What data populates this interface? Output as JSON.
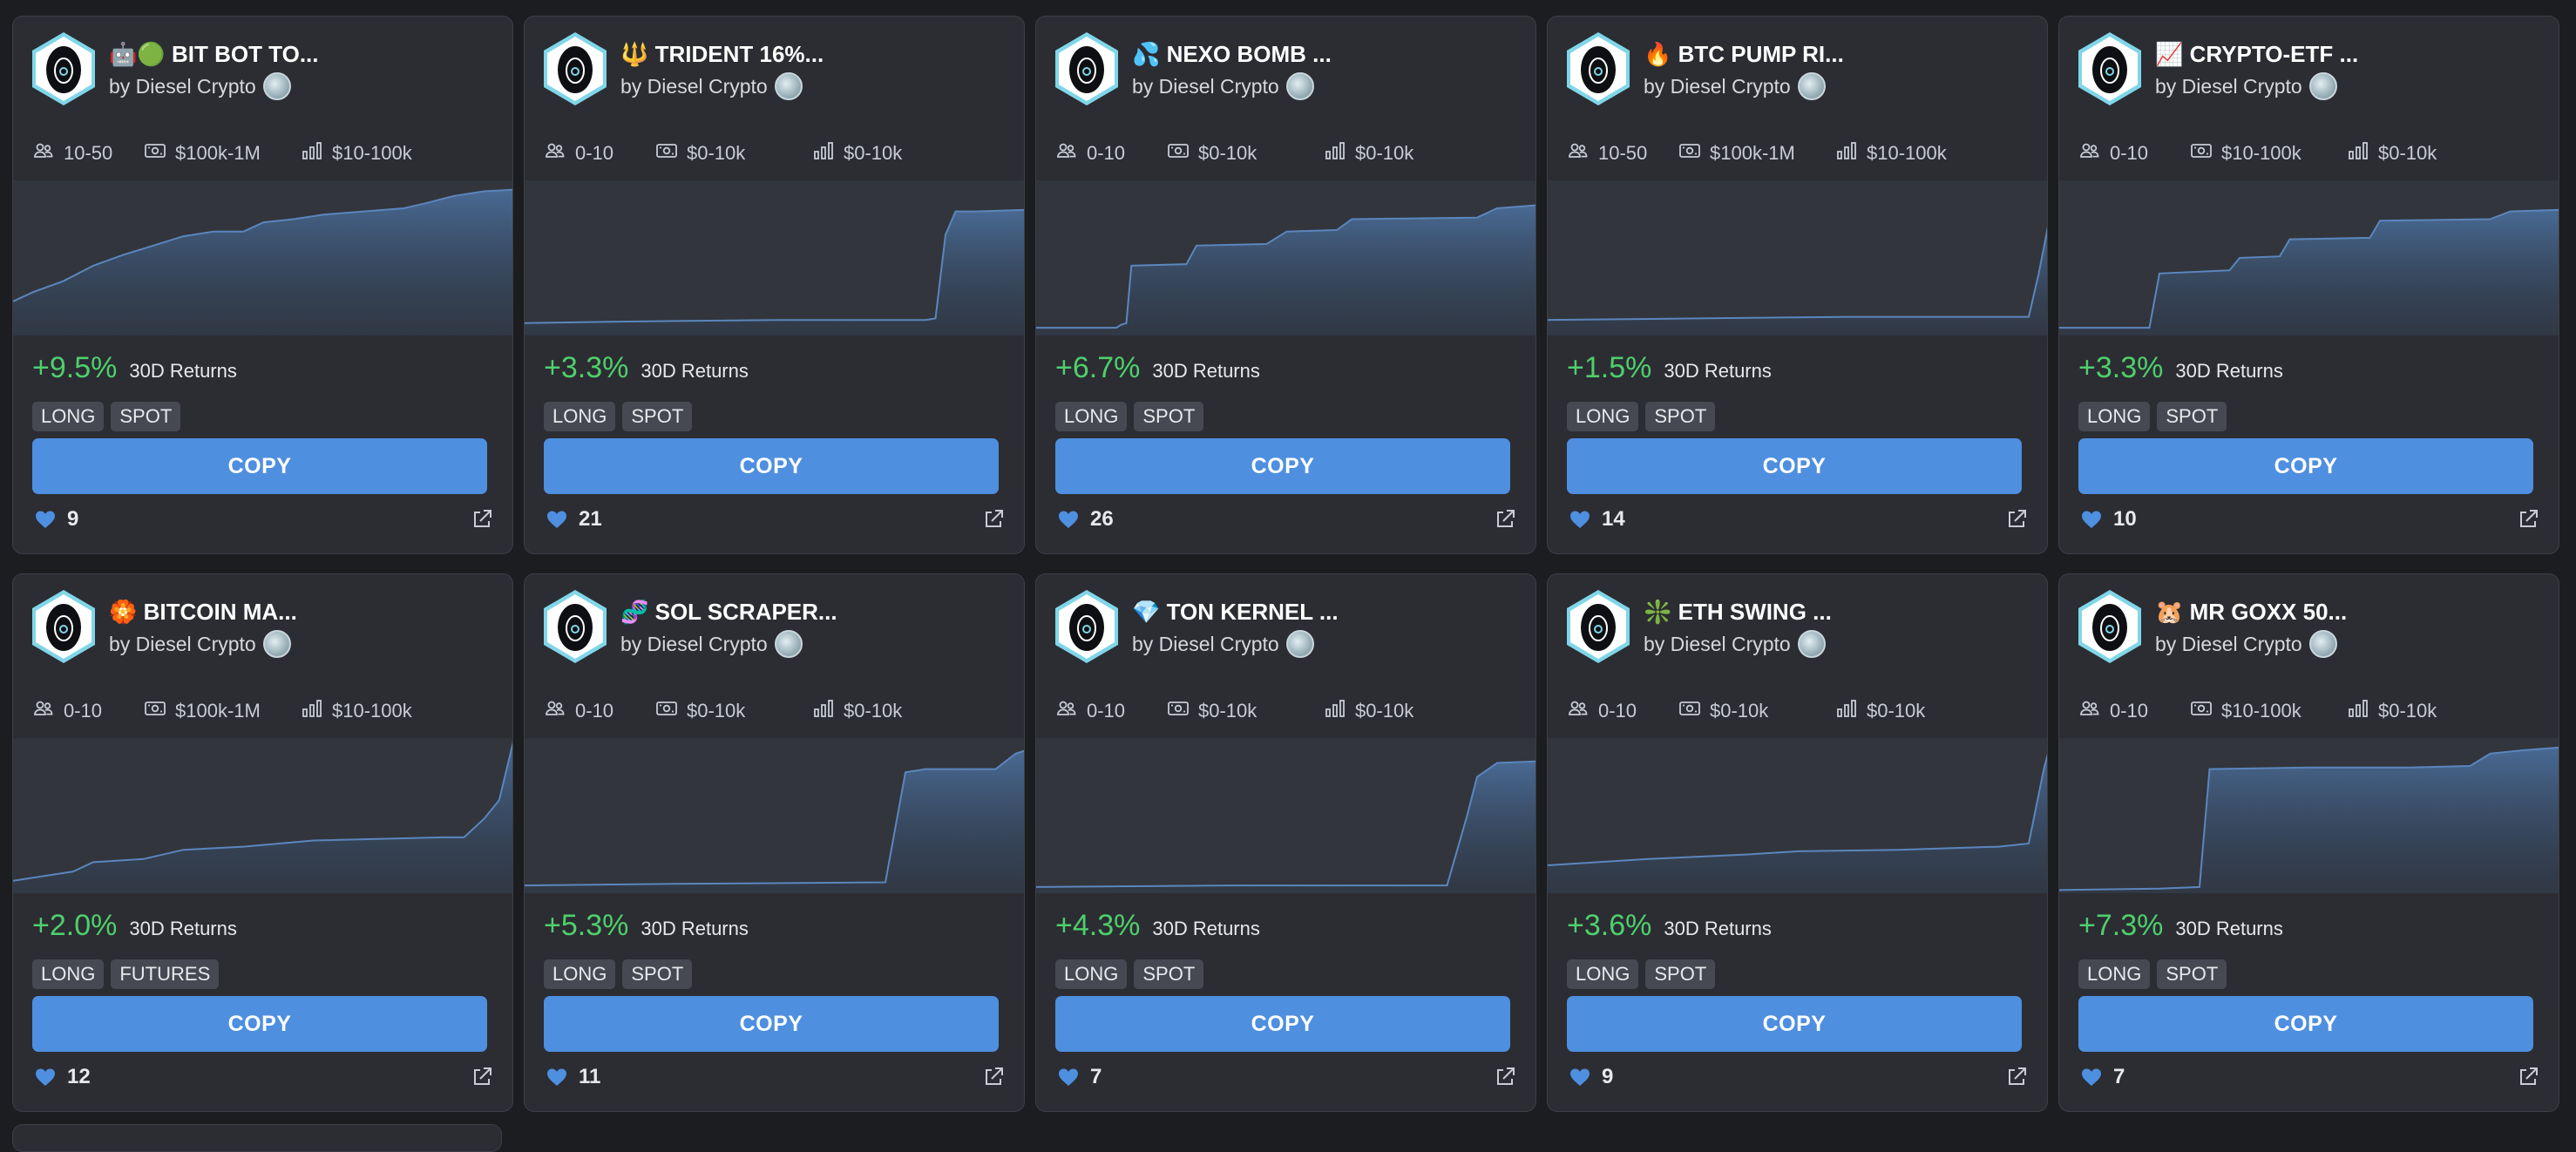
{
  "theme": {
    "accent": "#4e8fe0",
    "positive": "#4fcf6b",
    "card_bg": "#2b2d33",
    "page_bg": "#1c1d21"
  },
  "stat_icons": [
    "users-icon",
    "money-icon",
    "bar-chart-icon"
  ],
  "returns_label": "30D Returns",
  "copy_label": "COPY",
  "cards": [
    {
      "title": "🤖🟢 BIT BOT TO...",
      "author": "by Diesel Crypto",
      "stats": [
        "10-50",
        "$100k-1M",
        "$10-100k"
      ],
      "returns": "+9.5%",
      "tags": [
        "LONG",
        "SPOT"
      ],
      "likes": "9",
      "curve": [
        [
          0,
          0.78
        ],
        [
          0.04,
          0.72
        ],
        [
          0.1,
          0.65
        ],
        [
          0.16,
          0.55
        ],
        [
          0.22,
          0.48
        ],
        [
          0.28,
          0.42
        ],
        [
          0.34,
          0.36
        ],
        [
          0.4,
          0.33
        ],
        [
          0.46,
          0.33
        ],
        [
          0.5,
          0.27
        ],
        [
          0.56,
          0.25
        ],
        [
          0.62,
          0.22
        ],
        [
          0.7,
          0.2
        ],
        [
          0.78,
          0.18
        ],
        [
          0.82,
          0.15
        ],
        [
          0.88,
          0.1
        ],
        [
          0.94,
          0.07
        ],
        [
          1,
          0.06
        ]
      ]
    },
    {
      "title": "🔱 TRIDENT 16%...",
      "author": "by Diesel Crypto",
      "stats": [
        "0-10",
        "$0-10k",
        "$0-10k"
      ],
      "returns": "+3.3%",
      "tags": [
        "LONG",
        "SPOT"
      ],
      "likes": "21",
      "curve": [
        [
          0,
          0.92
        ],
        [
          0.2,
          0.91
        ],
        [
          0.5,
          0.9
        ],
        [
          0.8,
          0.9
        ],
        [
          0.82,
          0.89
        ],
        [
          0.84,
          0.35
        ],
        [
          0.86,
          0.2
        ],
        [
          0.9,
          0.2
        ],
        [
          1,
          0.19
        ]
      ]
    },
    {
      "title": "💦 NEXO BOMB ...",
      "author": "by Diesel Crypto",
      "stats": [
        "0-10",
        "$0-10k",
        "$0-10k"
      ],
      "returns": "+6.7%",
      "tags": [
        "LONG",
        "SPOT"
      ],
      "likes": "26",
      "curve": [
        [
          0,
          0.95
        ],
        [
          0.16,
          0.95
        ],
        [
          0.17,
          0.93
        ],
        [
          0.18,
          0.92
        ],
        [
          0.19,
          0.55
        ],
        [
          0.3,
          0.54
        ],
        [
          0.32,
          0.42
        ],
        [
          0.46,
          0.41
        ],
        [
          0.5,
          0.33
        ],
        [
          0.6,
          0.32
        ],
        [
          0.63,
          0.25
        ],
        [
          0.88,
          0.24
        ],
        [
          0.92,
          0.18
        ],
        [
          1,
          0.16
        ]
      ]
    },
    {
      "title": "🔥 BTC PUMP RI...",
      "author": "by Diesel Crypto",
      "stats": [
        "10-50",
        "$100k-1M",
        "$10-100k"
      ],
      "returns": "+1.5%",
      "tags": [
        "LONG",
        "SPOT"
      ],
      "likes": "14",
      "curve": [
        [
          0,
          0.9
        ],
        [
          0.3,
          0.89
        ],
        [
          0.6,
          0.88
        ],
        [
          0.96,
          0.88
        ],
        [
          0.98,
          0.6
        ],
        [
          1,
          0.27
        ]
      ]
    },
    {
      "title": "📈 CRYPTO-ETF ...",
      "author": "by Diesel Crypto",
      "stats": [
        "0-10",
        "$10-100k",
        "$0-10k"
      ],
      "returns": "+3.3%",
      "tags": [
        "LONG",
        "SPOT"
      ],
      "likes": "10",
      "curve": [
        [
          0,
          0.95
        ],
        [
          0.18,
          0.95
        ],
        [
          0.2,
          0.6
        ],
        [
          0.34,
          0.58
        ],
        [
          0.36,
          0.5
        ],
        [
          0.44,
          0.49
        ],
        [
          0.46,
          0.38
        ],
        [
          0.62,
          0.37
        ],
        [
          0.64,
          0.26
        ],
        [
          0.86,
          0.25
        ],
        [
          0.9,
          0.2
        ],
        [
          1,
          0.19
        ]
      ]
    },
    {
      "title": "🏵️ BITCOIN MA...",
      "author": "by Diesel Crypto",
      "stats": [
        "0-10",
        "$100k-1M",
        "$10-100k"
      ],
      "returns": "+2.0%",
      "tags": [
        "LONG",
        "FUTURES"
      ],
      "likes": "12",
      "curve": [
        [
          0,
          0.92
        ],
        [
          0.12,
          0.86
        ],
        [
          0.16,
          0.8
        ],
        [
          0.26,
          0.78
        ],
        [
          0.34,
          0.72
        ],
        [
          0.46,
          0.7
        ],
        [
          0.6,
          0.66
        ],
        [
          0.86,
          0.64
        ],
        [
          0.9,
          0.64
        ],
        [
          0.94,
          0.52
        ],
        [
          0.97,
          0.4
        ],
        [
          1,
          0.0
        ]
      ]
    },
    {
      "title": "🧬 SOL SCRAPER...",
      "author": "by Diesel Crypto",
      "stats": [
        "0-10",
        "$0-10k",
        "$0-10k"
      ],
      "returns": "+5.3%",
      "tags": [
        "LONG",
        "SPOT"
      ],
      "likes": "11",
      "curve": [
        [
          0,
          0.95
        ],
        [
          0.3,
          0.94
        ],
        [
          0.72,
          0.93
        ],
        [
          0.76,
          0.22
        ],
        [
          0.8,
          0.2
        ],
        [
          0.94,
          0.2
        ],
        [
          0.98,
          0.1
        ],
        [
          1,
          0.08
        ]
      ]
    },
    {
      "title": "💎 TON KERNEL ...",
      "author": "by Diesel Crypto",
      "stats": [
        "0-10",
        "$0-10k",
        "$0-10k"
      ],
      "returns": "+4.3%",
      "tags": [
        "LONG",
        "SPOT"
      ],
      "likes": "7",
      "curve": [
        [
          0,
          0.96
        ],
        [
          0.4,
          0.95
        ],
        [
          0.82,
          0.95
        ],
        [
          0.86,
          0.5
        ],
        [
          0.88,
          0.25
        ],
        [
          0.92,
          0.16
        ],
        [
          1,
          0.15
        ]
      ]
    },
    {
      "title": "❇️ ETH SWING ...",
      "author": "by Diesel Crypto",
      "stats": [
        "0-10",
        "$0-10k",
        "$0-10k"
      ],
      "returns": "+3.6%",
      "tags": [
        "LONG",
        "SPOT"
      ],
      "likes": "9",
      "curve": [
        [
          0,
          0.82
        ],
        [
          0.2,
          0.78
        ],
        [
          0.4,
          0.75
        ],
        [
          0.5,
          0.73
        ],
        [
          0.7,
          0.72
        ],
        [
          0.9,
          0.7
        ],
        [
          0.96,
          0.68
        ],
        [
          0.99,
          0.2
        ],
        [
          1,
          0.08
        ]
      ]
    },
    {
      "title": "🐹 MR GOXX 50...",
      "author": "by Diesel Crypto",
      "stats": [
        "0-10",
        "$10-100k",
        "$0-10k"
      ],
      "returns": "+7.3%",
      "tags": [
        "LONG",
        "SPOT"
      ],
      "likes": "7",
      "curve": [
        [
          0,
          0.98
        ],
        [
          0.2,
          0.97
        ],
        [
          0.28,
          0.96
        ],
        [
          0.3,
          0.2
        ],
        [
          0.5,
          0.19
        ],
        [
          0.7,
          0.19
        ],
        [
          0.82,
          0.18
        ],
        [
          0.86,
          0.1
        ],
        [
          0.92,
          0.08
        ],
        [
          1,
          0.06
        ]
      ]
    }
  ]
}
